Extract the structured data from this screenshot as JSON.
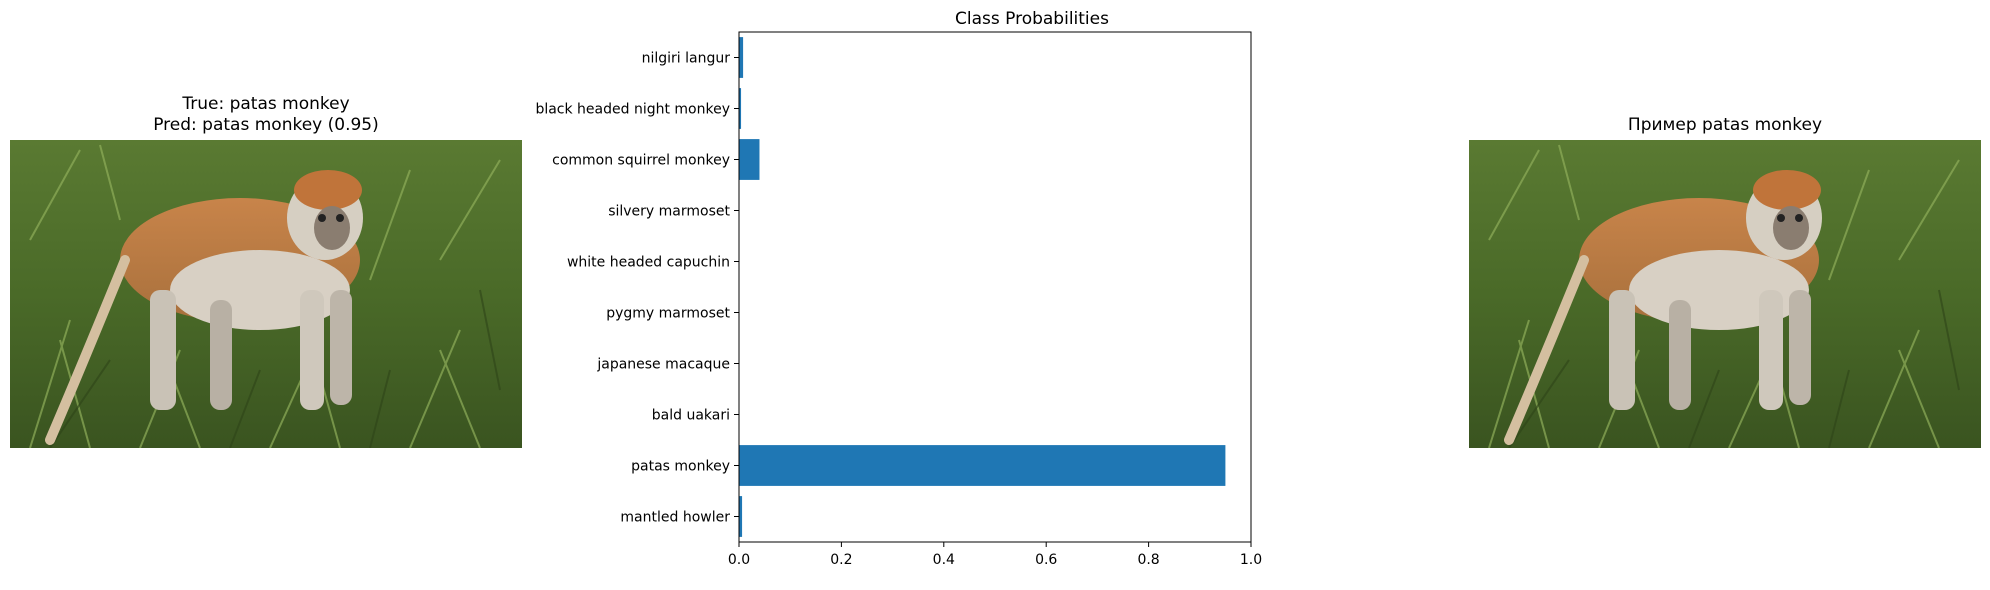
{
  "left_panel": {
    "title_line1": "True: patas monkey",
    "title_line2": "Pred: patas monkey (0.95)",
    "image_alt": "patas monkey photo"
  },
  "right_panel": {
    "title": "Пример patas monkey",
    "image_alt": "patas monkey example photo"
  },
  "colors": {
    "bar": "#1f77b4",
    "fur": "#c07a40",
    "grass_dark": "#3d5a22",
    "grass_light": "#7a9a4a"
  },
  "chart_data": {
    "type": "bar",
    "orientation": "horizontal",
    "title": "Class Probabilities",
    "xlabel": "",
    "ylabel": "",
    "categories": [
      "mantled howler",
      "patas monkey",
      "bald uakari",
      "japanese macaque",
      "pygmy marmoset",
      "white headed capuchin",
      "silvery marmoset",
      "common squirrel monkey",
      "black headed night monkey",
      "nilgiri langur"
    ],
    "values": [
      0.006,
      0.95,
      0.0,
      0.0,
      0.0,
      0.0,
      0.0,
      0.04,
      0.004,
      0.008
    ],
    "xlim": [
      0.0,
      1.0
    ],
    "xticks": [
      "0.0",
      "0.2",
      "0.4",
      "0.6",
      "0.8",
      "1.0"
    ],
    "grid": false,
    "legend": "none"
  }
}
